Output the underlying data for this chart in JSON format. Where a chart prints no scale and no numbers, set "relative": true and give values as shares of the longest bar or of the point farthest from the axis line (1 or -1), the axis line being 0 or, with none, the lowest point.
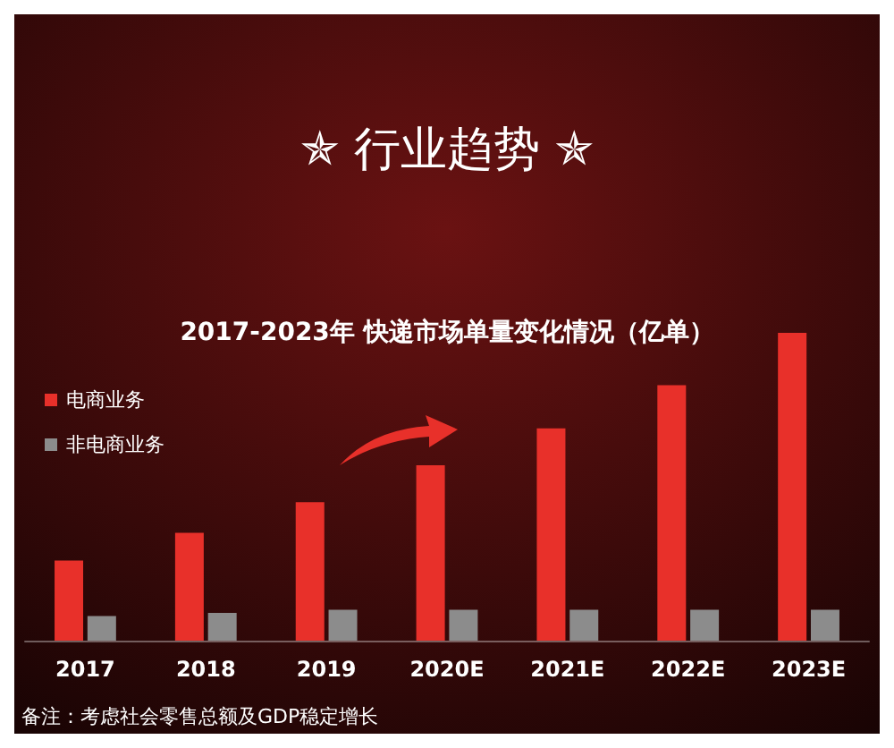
{
  "chart_data": {
    "type": "bar",
    "relative": true,
    "title": "✯ 行业趋势 ✯",
    "subtitle": "2017-2023年 快递市场单量变化情况（亿单）",
    "categories": [
      "2017",
      "2018",
      "2019",
      "2020E",
      "2021E",
      "2022E",
      "2023E"
    ],
    "series": [
      {
        "name": "电商业务",
        "color": "#e8302a",
        "values": [
          0.26,
          0.35,
          0.45,
          0.57,
          0.69,
          0.83,
          1
        ]
      },
      {
        "name": "非电商业务",
        "color": "#8c8c8c",
        "values": [
          0.08,
          0.09,
          0.1,
          0.1,
          0.1,
          0.1,
          0.1
        ]
      }
    ],
    "legend": "top left",
    "grid": false,
    "annotations": [
      "备注：考虑社会零售总额及GDP稳定增长"
    ]
  }
}
